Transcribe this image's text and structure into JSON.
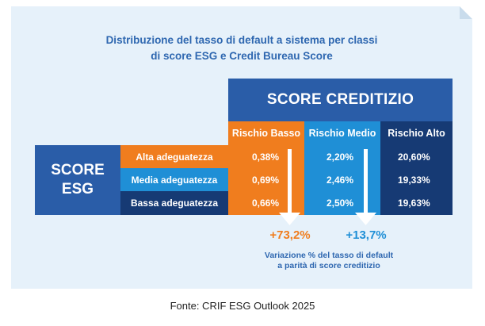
{
  "title_lines": [
    "Distribuzione del tasso di default a sistema per classi",
    "di score ESG e Credit Bureau Score"
  ],
  "chart_data": {
    "type": "table",
    "column_group_label": "SCORE CREDITIZIO",
    "row_group_label_lines": [
      "SCORE",
      "ESG"
    ],
    "columns": [
      "Rischio Basso",
      "Rischio Medio",
      "Rischio Alto"
    ],
    "rows": [
      "Alta adeguatezza",
      "Media adeguatezza",
      "Bassa adeguatezza"
    ],
    "values": [
      [
        "0,38%",
        "2,20%",
        "20,60%"
      ],
      [
        "0,69%",
        "2,46%",
        "19,33%"
      ],
      [
        "0,66%",
        "2,50%",
        "19,63%"
      ]
    ],
    "variations": [
      "+73,2%",
      "+13,7%"
    ],
    "variation_note_lines": [
      "Variazione % del tasso di default",
      "a parità di score creditizio"
    ]
  },
  "colors": {
    "orange": "#f07d1e",
    "light_blue": "#1f8fd6",
    "navy": "#163a74",
    "mid_blue": "#2a5da8"
  },
  "source": "Fonte: CRIF ESG Outlook 2025"
}
